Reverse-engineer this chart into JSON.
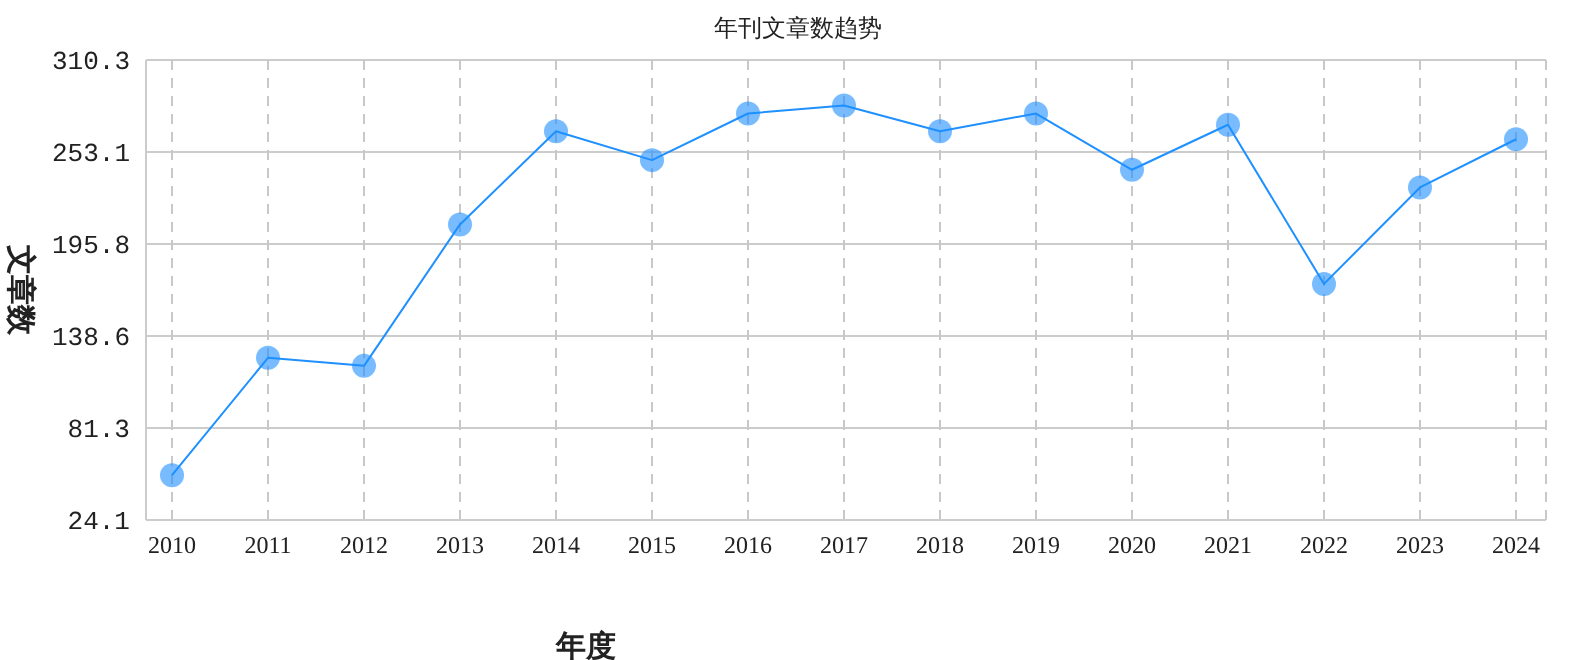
{
  "chart_data": {
    "type": "line",
    "title": "年刊文章数趋势",
    "xlabel": "年度",
    "ylabel": "文章数",
    "categories": [
      "2010",
      "2011",
      "2012",
      "2013",
      "2014",
      "2015",
      "2016",
      "2017",
      "2018",
      "2019",
      "2020",
      "2021",
      "2022",
      "2023",
      "2024"
    ],
    "series": [
      {
        "color": "#1e90ff",
        "values": [
          52,
          125,
          120,
          208,
          266,
          248,
          277,
          282,
          266,
          277,
          242,
          270,
          171,
          231,
          261
        ]
      }
    ],
    "ylim": [
      24.1,
      310.3
    ],
    "yticks": [
      24.1,
      81.3,
      138.6,
      195.8,
      253.1,
      310.3
    ],
    "grid": true,
    "marker": "circle",
    "line_style": "solid"
  }
}
